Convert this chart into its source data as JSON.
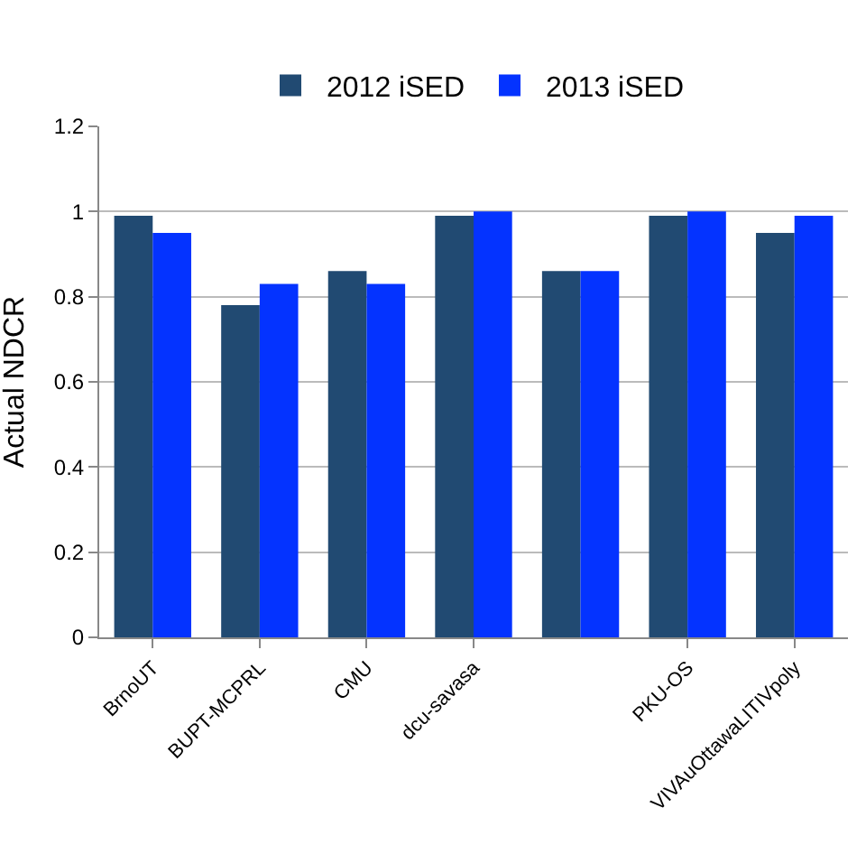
{
  "chart_data": {
    "type": "bar",
    "ylabel": "Actual NDCR",
    "categories": [
      "BrnoUT",
      "BUPT-MCPRL",
      "CMU",
      "dcu-savasa",
      null,
      "PKU-OS",
      "VIVAuOttawaLITIVpoly"
    ],
    "series": [
      {
        "name": "2012 iSED",
        "color": "#214a72",
        "values": [
          0.99,
          0.78,
          0.86,
          0.99,
          0.86,
          0.99,
          0.95
        ]
      },
      {
        "name": "2013 iSED",
        "color": "#0433ff",
        "values": [
          0.95,
          0.83,
          0.83,
          1.0,
          0.86,
          1.0,
          0.99
        ]
      }
    ],
    "ylim": [
      0,
      1.2
    ],
    "yticks": [
      0,
      0.2,
      0.4,
      0.6,
      0.8,
      1,
      1.2
    ],
    "grid": "y",
    "legend": "top"
  }
}
